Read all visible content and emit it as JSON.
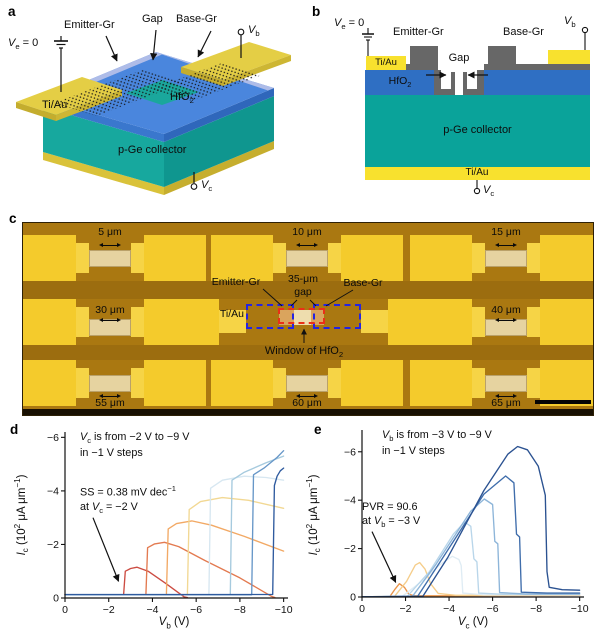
{
  "panels": {
    "a": {
      "letter": "a",
      "labels": {
        "ve": "*V*_{e} = 0",
        "emitter": "Emitter-Gr",
        "gap": "Gap",
        "base": "Base-Gr",
        "vb": "*V*_{b}",
        "tiau": "Ti/Au",
        "hfo2": "HfO_{2}",
        "collector": "p-Ge collector",
        "vc": "*V*_{c}"
      }
    },
    "b": {
      "letter": "b",
      "labels": {
        "ve": "*V*_{e} = 0",
        "emitter": "Emitter-Gr",
        "base": "Base-Gr",
        "vb": "*V*_{b}",
        "tiau_top": "Ti/Au",
        "hfo2": "HfO_{2}",
        "gap": "Gap",
        "collector": "p-Ge collector",
        "tiau_bottom": "Ti/Au",
        "vc": "*V*_{c}"
      }
    },
    "c": {
      "letter": "c",
      "annotations": {
        "tiau": "Ti/Au",
        "emitter": "Emitter-Gr",
        "gap_value": "35-μm",
        "gap_word": "gap",
        "base": "Base-Gr",
        "window": "Window of HfO_{2}"
      },
      "devices": [
        {
          "row": 0,
          "col": 0,
          "label": "5 μm",
          "annotated": false
        },
        {
          "row": 0,
          "col": 1,
          "label": "10 μm",
          "annotated": false
        },
        {
          "row": 0,
          "col": 2,
          "label": "15 μm",
          "annotated": false
        },
        {
          "row": 1,
          "col": 0,
          "label": "30 μm",
          "annotated": false
        },
        {
          "row": 1,
          "col": 1,
          "label": null,
          "annotated": true
        },
        {
          "row": 1,
          "col": 2,
          "label": "40 μm",
          "annotated": false
        },
        {
          "row": 2,
          "col": 0,
          "label": "55 μm",
          "annotated": false
        },
        {
          "row": 2,
          "col": 1,
          "label": "60 μm",
          "annotated": false
        },
        {
          "row": 2,
          "col": 2,
          "label": "65 μm",
          "annotated": false
        }
      ]
    },
    "d": {
      "letter": "d"
    },
    "e": {
      "letter": "e"
    }
  },
  "chart_data": [
    {
      "panel": "d",
      "type": "line",
      "xlabel": "*V*_{b} (V)",
      "ylabel": "*I*_{c} (10^{2} μA μm^{−1})",
      "xlim": [
        0,
        -10.2
      ],
      "ylim": [
        0,
        -6.2
      ],
      "xticks": {
        "values": [
          0,
          -2,
          -4,
          -6,
          -8,
          -10
        ],
        "labels": [
          "0",
          "−2",
          "−4",
          "−6",
          "−8",
          "−10"
        ]
      },
      "yticks": {
        "values": [
          0,
          -2,
          -4,
          -6
        ],
        "labels": [
          "0",
          "−2",
          "−4",
          "−6"
        ]
      },
      "annotations": [
        "*V*_{c} is from −2 V to −9 V\nin −1 V steps",
        "SS = 0.38 mV dec^{−1}\nat *V*_{c} = −2 V"
      ],
      "arrow": {
        "from": [
          -1.28,
          -3.0
        ],
        "to": [
          -2.45,
          -0.62
        ]
      },
      "series": [
        {
          "vc": -2,
          "color": "#cc4c42",
          "points": [
            [
              0,
              -0.12
            ],
            [
              -2.68,
              -0.12
            ],
            [
              -2.76,
              -1.0
            ],
            [
              -3.0,
              -1.1
            ],
            [
              -3.3,
              -1.15
            ],
            [
              -3.8,
              -1.0
            ],
            [
              -4.6,
              -0.55
            ],
            [
              -5.45,
              -0.04
            ],
            [
              -5.6,
              -0.02
            ]
          ]
        },
        {
          "vc": -3,
          "color": "#e37a50",
          "points": [
            [
              0,
              -0.12
            ],
            [
              -3.7,
              -0.12
            ],
            [
              -3.78,
              -1.88
            ],
            [
              -4.1,
              -2.02
            ],
            [
              -4.55,
              -2.08
            ],
            [
              -5.2,
              -1.92
            ],
            [
              -6.4,
              -1.4
            ],
            [
              -8.0,
              -0.75
            ],
            [
              -9.45,
              -0.06
            ],
            [
              -9.6,
              -0.02
            ]
          ]
        },
        {
          "vc": -4,
          "color": "#f2a965",
          "points": [
            [
              0,
              -0.12
            ],
            [
              -4.64,
              -0.12
            ],
            [
              -4.72,
              -2.58
            ],
            [
              -5.1,
              -2.78
            ],
            [
              -5.8,
              -2.88
            ],
            [
              -6.7,
              -2.72
            ],
            [
              -8.2,
              -2.3
            ],
            [
              -10,
              -1.75
            ]
          ]
        },
        {
          "vc": -5,
          "color": "#f2d893",
          "points": [
            [
              0,
              -0.12
            ],
            [
              -5.6,
              -0.12
            ],
            [
              -5.68,
              -3.3
            ],
            [
              -6.2,
              -3.6
            ],
            [
              -7.2,
              -3.75
            ],
            [
              -8.4,
              -3.65
            ],
            [
              -10,
              -3.35
            ]
          ]
        },
        {
          "vc": -6,
          "color": "#d7e7f1",
          "points": [
            [
              0,
              -0.12
            ],
            [
              -6.58,
              -0.12
            ],
            [
              -6.66,
              -4.1
            ],
            [
              -7.2,
              -4.4
            ],
            [
              -8.2,
              -4.55
            ],
            [
              -9.2,
              -4.5
            ],
            [
              -10,
              -4.4
            ]
          ]
        },
        {
          "vc": -7,
          "color": "#a6cade",
          "points": [
            [
              0,
              -0.12
            ],
            [
              -7.56,
              -0.12
            ],
            [
              -7.64,
              -4.4
            ],
            [
              -8.2,
              -4.7
            ],
            [
              -9.2,
              -5.05
            ],
            [
              -10,
              -5.3
            ]
          ]
        },
        {
          "vc": -8,
          "color": "#6797c8",
          "points": [
            [
              0,
              -0.12
            ],
            [
              -8.54,
              -0.12
            ],
            [
              -8.62,
              -4.6
            ],
            [
              -9.1,
              -4.85
            ],
            [
              -9.7,
              -5.25
            ],
            [
              -10,
              -5.5
            ]
          ]
        },
        {
          "vc": -9,
          "color": "#2f5b9f",
          "points": [
            [
              0,
              -0.13
            ],
            [
              -9.5,
              -0.13
            ],
            [
              -9.58,
              -4.2
            ],
            [
              -9.7,
              -4.55
            ],
            [
              -9.85,
              -4.75
            ],
            [
              -10,
              -4.85
            ]
          ]
        }
      ]
    },
    {
      "panel": "e",
      "type": "line",
      "xlabel": "*V*_{c} (V)",
      "ylabel": "*I*_{c} (10^{2} μA μm^{−1})",
      "xlim": [
        0,
        -10.2
      ],
      "ylim": [
        0,
        -6.9
      ],
      "xticks": {
        "values": [
          0,
          -2,
          -4,
          -6,
          -8,
          -10
        ],
        "labels": [
          "0",
          "−2",
          "−4",
          "−6",
          "−8",
          "−10"
        ]
      },
      "yticks": {
        "values": [
          0,
          -2,
          -4,
          -6
        ],
        "labels": [
          "0",
          "−2",
          "−4",
          "−6"
        ]
      },
      "annotations": [
        "*V*_{b} is from −3 V to −9 V\nin −1 V steps",
        "PVR = 90.6\nat *V*_{b} = −3 V"
      ],
      "arrow": {
        "from": [
          -0.46,
          -2.7
        ],
        "to": [
          -1.55,
          -0.6
        ]
      },
      "series": [
        {
          "vb": -3,
          "color": "#eb9549",
          "points": [
            [
              0,
              -0.01
            ],
            [
              -1.28,
              -0.02
            ],
            [
              -1.5,
              -0.3
            ],
            [
              -1.72,
              -0.55
            ],
            [
              -1.95,
              -0.4
            ],
            [
              -2.15,
              -0.12
            ],
            [
              -2.4,
              -0.05
            ],
            [
              -4.0,
              -0.05
            ],
            [
              -10,
              -0.07
            ]
          ]
        },
        {
          "vb": -4,
          "color": "#f5cd8a",
          "points": [
            [
              0,
              -0.01
            ],
            [
              -1.5,
              -0.03
            ],
            [
              -2.05,
              -0.65
            ],
            [
              -2.45,
              -1.32
            ],
            [
              -2.65,
              -1.42
            ],
            [
              -2.9,
              -1.15
            ],
            [
              -3.15,
              -0.55
            ],
            [
              -3.5,
              -0.15
            ],
            [
              -4.3,
              -0.07
            ],
            [
              -10,
              -0.07
            ]
          ]
        },
        {
          "vb": -5,
          "color": "#dfecf4",
          "points": [
            [
              0,
              -0.01
            ],
            [
              -1.85,
              -0.03
            ],
            [
              -2.7,
              -0.62
            ],
            [
              -3.6,
              -1.35
            ],
            [
              -4.15,
              -1.68
            ],
            [
              -4.45,
              -1.55
            ],
            [
              -4.56,
              -1.3
            ],
            [
              -4.63,
              -0.16
            ],
            [
              -5.6,
              -0.09
            ],
            [
              -10,
              -0.09
            ]
          ]
        },
        {
          "vb": -6,
          "color": "#b9d6ea",
          "points": [
            [
              0,
              -0.01
            ],
            [
              -2.08,
              -0.03
            ],
            [
              -3.1,
              -1.05
            ],
            [
              -4.2,
              -2.6
            ],
            [
              -4.72,
              -3.1
            ],
            [
              -5.0,
              -2.92
            ],
            [
              -5.14,
              -1.58
            ],
            [
              -5.28,
              -1.45
            ],
            [
              -5.36,
              -0.16
            ],
            [
              -6.5,
              -0.11
            ],
            [
              -10,
              -0.11
            ]
          ]
        },
        {
          "vb": -7,
          "color": "#8db5d9",
          "points": [
            [
              0,
              -0.01
            ],
            [
              -2.32,
              -0.03
            ],
            [
              -3.4,
              -1.35
            ],
            [
              -5.0,
              -3.55
            ],
            [
              -5.62,
              -4.05
            ],
            [
              -6.0,
              -3.82
            ],
            [
              -6.1,
              -2.3
            ],
            [
              -6.24,
              -2.2
            ],
            [
              -6.32,
              -0.18
            ],
            [
              -7.5,
              -0.13
            ],
            [
              -10,
              -0.13
            ]
          ]
        },
        {
          "vb": -8,
          "color": "#3f6dab",
          "points": [
            [
              0,
              -0.01
            ],
            [
              -2.56,
              -0.03
            ],
            [
              -3.7,
              -1.6
            ],
            [
              -5.6,
              -4.25
            ],
            [
              -6.6,
              -5.0
            ],
            [
              -6.98,
              -4.72
            ],
            [
              -7.1,
              -2.6
            ],
            [
              -7.24,
              -2.48
            ],
            [
              -7.32,
              -0.2
            ],
            [
              -8.5,
              -0.16
            ],
            [
              -10,
              -0.16
            ]
          ]
        },
        {
          "vb": -9,
          "color": "#2b5291",
          "points": [
            [
              0,
              -0.01
            ],
            [
              -2.8,
              -0.03
            ],
            [
              -3.95,
              -1.65
            ],
            [
              -5.6,
              -4.4
            ],
            [
              -6.7,
              -5.9
            ],
            [
              -7.15,
              -6.22
            ],
            [
              -7.6,
              -6.08
            ],
            [
              -8.1,
              -5.4
            ],
            [
              -8.42,
              -4.2
            ],
            [
              -8.5,
              -1.05
            ],
            [
              -8.6,
              -0.4
            ],
            [
              -9.2,
              -0.3
            ],
            [
              -10,
              -0.28
            ]
          ]
        }
      ]
    }
  ]
}
